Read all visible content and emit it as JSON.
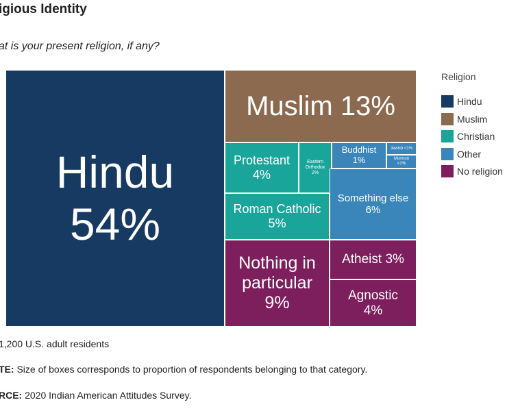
{
  "header": {
    "title": "igious Identity",
    "question": "at is your present religion, if any?"
  },
  "chart_data": {
    "type": "treemap",
    "legend": {
      "title": "Religion",
      "items": [
        {
          "label": "Hindu",
          "color": "#173a63"
        },
        {
          "label": "Muslim",
          "color": "#8c6a4f"
        },
        {
          "label": "Christian",
          "color": "#1aa59b"
        },
        {
          "label": "Other",
          "color": "#3a86bb"
        },
        {
          "label": "No religion",
          "color": "#7e1f5d"
        }
      ]
    },
    "tiles": [
      {
        "id": "hindu",
        "group": "Hindu",
        "lines": [
          "Hindu",
          "54%"
        ],
        "value": 54
      },
      {
        "id": "muslim",
        "group": "Muslim",
        "lines": [
          "Muslim 13%"
        ],
        "value": 13
      },
      {
        "id": "protestant",
        "group": "Christian",
        "lines": [
          "Protestant",
          "4%"
        ],
        "value": 4
      },
      {
        "id": "eastern-orthodox",
        "group": "Christian",
        "lines": [
          "Eastern",
          "Orthodox",
          "2%"
        ],
        "value": 2
      },
      {
        "id": "roman-catholic",
        "group": "Christian",
        "lines": [
          "Roman Catholic",
          "5%"
        ],
        "value": 5
      },
      {
        "id": "buddhist",
        "group": "Other",
        "lines": [
          "Buddhist",
          "1%"
        ],
        "value": 1
      },
      {
        "id": "jewish",
        "group": "Other",
        "lines": [
          "Jewish <1%"
        ],
        "value": 0.5
      },
      {
        "id": "mormon",
        "group": "Other",
        "lines": [
          "Mormon",
          "<1%"
        ],
        "value": 0.5
      },
      {
        "id": "something-else",
        "group": "Other",
        "lines": [
          "Something else",
          "6%"
        ],
        "value": 6
      },
      {
        "id": "nothing-in-particular",
        "group": "No religion",
        "lines": [
          "Nothing in",
          "particular",
          "9%"
        ],
        "value": 9
      },
      {
        "id": "atheist",
        "group": "No religion",
        "lines": [
          "Atheist 3%"
        ],
        "value": 3
      },
      {
        "id": "agnostic",
        "group": "No religion",
        "lines": [
          "Agnostic",
          "4%"
        ],
        "value": 4
      }
    ]
  },
  "footer": {
    "n": "1,200 U.S. adult residents",
    "note_label": "TE:",
    "note_text": " Size of boxes corresponds to proportion of respondents belonging to that category.",
    "source_label": "RCE:",
    "source_text": " 2020 Indian American Attitudes Survey."
  }
}
